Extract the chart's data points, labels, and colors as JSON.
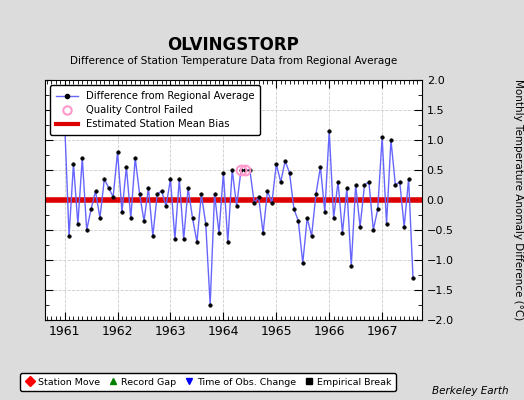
{
  "title": "OLVINGSTORP",
  "subtitle": "Difference of Station Temperature Data from Regional Average",
  "ylabel_right": "Monthly Temperature Anomaly Difference (°C)",
  "credit": "Berkeley Earth",
  "xlim": [
    1960.62,
    1967.75
  ],
  "ylim": [
    -2,
    2
  ],
  "bias_y": 0.0,
  "background_color": "#dcdcdc",
  "plot_bg_color": "#ffffff",
  "line_color": "#6666ff",
  "bias_color": "#dd0000",
  "qc_color": "#ff99cc",
  "months": [
    1961.0,
    1961.0833,
    1961.1667,
    1961.25,
    1961.3333,
    1961.4167,
    1961.5,
    1961.5833,
    1961.6667,
    1961.75,
    1961.8333,
    1961.9167,
    1962.0,
    1962.0833,
    1962.1667,
    1962.25,
    1962.3333,
    1962.4167,
    1962.5,
    1962.5833,
    1962.6667,
    1962.75,
    1962.8333,
    1962.9167,
    1963.0,
    1963.0833,
    1963.1667,
    1963.25,
    1963.3333,
    1963.4167,
    1963.5,
    1963.5833,
    1963.6667,
    1963.75,
    1963.8333,
    1963.9167,
    1964.0,
    1964.0833,
    1964.1667,
    1964.25,
    1964.3333,
    1964.4167,
    1964.5,
    1964.5833,
    1964.6667,
    1964.75,
    1964.8333,
    1964.9167,
    1965.0,
    1965.0833,
    1965.1667,
    1965.25,
    1965.3333,
    1965.4167,
    1965.5,
    1965.5833,
    1965.6667,
    1965.75,
    1965.8333,
    1965.9167,
    1966.0,
    1966.0833,
    1966.1667,
    1966.25,
    1966.3333,
    1966.4167,
    1966.5,
    1966.5833,
    1966.6667,
    1966.75,
    1966.8333,
    1966.9167,
    1967.0,
    1967.0833,
    1967.1667,
    1967.25,
    1967.3333,
    1967.4167,
    1967.5,
    1967.5833
  ],
  "values": [
    1.3,
    -0.6,
    0.6,
    -0.4,
    0.7,
    -0.5,
    -0.15,
    0.15,
    -0.3,
    0.35,
    0.2,
    0.05,
    0.8,
    -0.2,
    0.55,
    -0.3,
    0.7,
    0.1,
    -0.35,
    0.2,
    -0.6,
    0.1,
    0.15,
    -0.1,
    0.35,
    -0.65,
    0.35,
    -0.65,
    0.2,
    -0.3,
    -0.7,
    0.1,
    -0.4,
    -1.75,
    0.1,
    -0.55,
    0.45,
    -0.7,
    0.5,
    -0.1,
    0.5,
    0.5,
    0.5,
    -0.05,
    0.05,
    -0.55,
    0.15,
    -0.05,
    0.6,
    0.3,
    0.65,
    0.45,
    -0.15,
    -0.35,
    -1.05,
    -0.3,
    -0.6,
    0.1,
    0.55,
    -0.2,
    1.15,
    -0.3,
    0.3,
    -0.55,
    0.2,
    -1.1,
    0.25,
    -0.45,
    0.25,
    0.3,
    -0.5,
    -0.15,
    1.05,
    -0.4,
    1.0,
    0.25,
    0.3,
    -0.45,
    0.35,
    -1.3
  ],
  "qc_indices": [
    40,
    41
  ],
  "xticks": [
    1961,
    1962,
    1963,
    1964,
    1965,
    1966,
    1967
  ],
  "yticks": [
    -2,
    -1.5,
    -1,
    -0.5,
    0,
    0.5,
    1,
    1.5,
    2
  ]
}
